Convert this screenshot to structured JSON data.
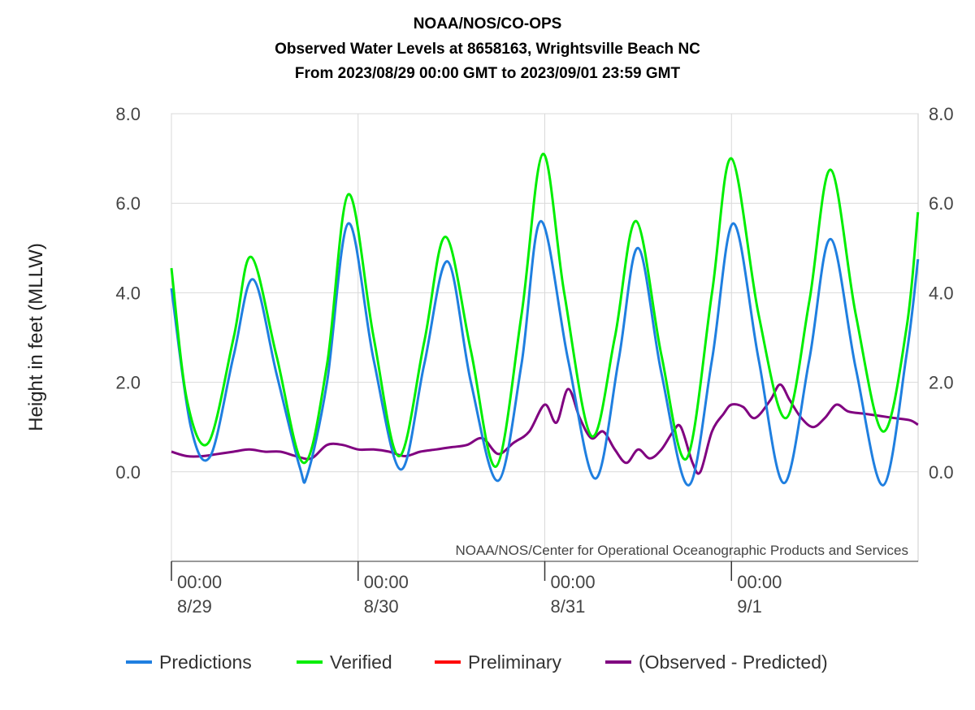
{
  "chart_data": {
    "type": "line",
    "title_lines": [
      "NOAA/NOS/CO-OPS",
      "Observed Water Levels at 8658163, Wrightsville Beach NC",
      "From 2023/08/29 00:00 GMT to 2023/09/01 23:59 GMT"
    ],
    "ylabel": "Height in feet (MLLW)",
    "ylim": [
      -2.0,
      8.0
    ],
    "y_ticks": [
      "8.0",
      "6.0",
      "4.0",
      "2.0",
      "0.0"
    ],
    "xlim": [
      "2023-08-29 00:00",
      "2023-09-01 23:59"
    ],
    "x_ticks": [
      {
        "time": "00:00",
        "date": "8/29"
      },
      {
        "time": "00:00",
        "date": "8/30"
      },
      {
        "time": "00:00",
        "date": "8/31"
      },
      {
        "time": "00:00",
        "date": "9/1"
      }
    ],
    "credit": "NOAA/NOS/Center for Operational Oceanographic Products and Services",
    "grid": true,
    "legend_position": "bottom",
    "series": [
      {
        "name": "Predictions",
        "color": "#1f7fe0",
        "points": [
          [
            "2023-08-29 00:00",
            4.1
          ],
          [
            "2023-08-29 02:30",
            1.0
          ],
          [
            "2023-08-29 05:00",
            0.35
          ],
          [
            "2023-08-29 08:00",
            2.6
          ],
          [
            "2023-08-29 10:30",
            4.3
          ],
          [
            "2023-08-29 13:30",
            2.2
          ],
          [
            "2023-08-29 16:30",
            0.1
          ],
          [
            "2023-08-29 17:30",
            -0.05
          ],
          [
            "2023-08-29 20:00",
            2.0
          ],
          [
            "2023-08-29 22:45",
            5.55
          ],
          [
            "2023-08-30 02:00",
            2.5
          ],
          [
            "2023-08-30 05:30",
            0.05
          ],
          [
            "2023-08-30 08:30",
            2.4
          ],
          [
            "2023-08-30 11:30",
            4.7
          ],
          [
            "2023-08-30 14:30",
            2.0
          ],
          [
            "2023-08-30 18:00",
            -0.2
          ],
          [
            "2023-08-30 21:00",
            2.4
          ],
          [
            "2023-08-30 23:30",
            5.6
          ],
          [
            "2023-08-31 03:00",
            2.5
          ],
          [
            "2023-08-31 06:30",
            -0.15
          ],
          [
            "2023-08-31 09:30",
            2.5
          ],
          [
            "2023-08-31 12:00",
            5.0
          ],
          [
            "2023-08-31 15:00",
            2.2
          ],
          [
            "2023-08-31 18:30",
            -0.3
          ],
          [
            "2023-08-31 21:30",
            2.5
          ],
          [
            "2023-09-01 00:15",
            5.55
          ],
          [
            "2023-09-01 03:30",
            2.5
          ],
          [
            "2023-09-01 06:45",
            -0.25
          ],
          [
            "2023-09-01 10:00",
            2.5
          ],
          [
            "2023-09-01 12:45",
            5.2
          ],
          [
            "2023-09-01 16:00",
            2.3
          ],
          [
            "2023-09-01 19:30",
            -0.3
          ],
          [
            "2023-09-01 22:30",
            2.6
          ],
          [
            "2023-09-01 23:59",
            4.75
          ]
        ]
      },
      {
        "name": "Verified",
        "color": "#00ee00",
        "points": [
          [
            "2023-08-29 00:00",
            4.55
          ],
          [
            "2023-08-29 02:00",
            1.6
          ],
          [
            "2023-08-29 04:45",
            0.65
          ],
          [
            "2023-08-29 08:00",
            3.0
          ],
          [
            "2023-08-29 10:15",
            4.8
          ],
          [
            "2023-08-29 13:30",
            2.6
          ],
          [
            "2023-08-29 17:00",
            0.2
          ],
          [
            "2023-08-29 20:00",
            2.4
          ],
          [
            "2023-08-29 22:45",
            6.2
          ],
          [
            "2023-08-30 02:00",
            3.0
          ],
          [
            "2023-08-30 05:15",
            0.35
          ],
          [
            "2023-08-30 08:30",
            2.9
          ],
          [
            "2023-08-30 11:15",
            5.25
          ],
          [
            "2023-08-30 14:30",
            2.7
          ],
          [
            "2023-08-30 17:45",
            0.12
          ],
          [
            "2023-08-30 21:00",
            3.5
          ],
          [
            "2023-08-30 23:45",
            7.1
          ],
          [
            "2023-08-31 02:30",
            4.0
          ],
          [
            "2023-08-31 06:00",
            0.8
          ],
          [
            "2023-08-31 09:00",
            3.0
          ],
          [
            "2023-08-31 11:45",
            5.6
          ],
          [
            "2023-08-31 15:00",
            2.6
          ],
          [
            "2023-08-31 18:15",
            0.3
          ],
          [
            "2023-08-31 21:30",
            4.0
          ],
          [
            "2023-09-01 00:00",
            7.0
          ],
          [
            "2023-09-01 03:30",
            3.5
          ],
          [
            "2023-09-01 07:00",
            1.2
          ],
          [
            "2023-09-01 10:00",
            3.8
          ],
          [
            "2023-09-01 12:45",
            6.75
          ],
          [
            "2023-09-01 16:00",
            3.5
          ],
          [
            "2023-09-01 19:30",
            0.9
          ],
          [
            "2023-09-01 22:30",
            3.2
          ],
          [
            "2023-09-01 23:59",
            5.8
          ]
        ]
      },
      {
        "name": "Preliminary",
        "color": "#ff0000",
        "points": []
      },
      {
        "name": "(Observed - Predicted)",
        "color": "#800080",
        "points": [
          [
            "2023-08-29 00:00",
            0.45
          ],
          [
            "2023-08-29 02:00",
            0.35
          ],
          [
            "2023-08-29 04:00",
            0.35
          ],
          [
            "2023-08-29 06:00",
            0.4
          ],
          [
            "2023-08-29 08:00",
            0.45
          ],
          [
            "2023-08-29 10:00",
            0.5
          ],
          [
            "2023-08-29 12:00",
            0.45
          ],
          [
            "2023-08-29 14:00",
            0.45
          ],
          [
            "2023-08-29 16:00",
            0.35
          ],
          [
            "2023-08-29 18:00",
            0.3
          ],
          [
            "2023-08-29 20:00",
            0.6
          ],
          [
            "2023-08-29 22:00",
            0.6
          ],
          [
            "2023-08-30 00:00",
            0.5
          ],
          [
            "2023-08-30 02:00",
            0.5
          ],
          [
            "2023-08-30 04:00",
            0.45
          ],
          [
            "2023-08-30 06:00",
            0.35
          ],
          [
            "2023-08-30 08:00",
            0.45
          ],
          [
            "2023-08-30 10:00",
            0.5
          ],
          [
            "2023-08-30 12:00",
            0.55
          ],
          [
            "2023-08-30 14:00",
            0.6
          ],
          [
            "2023-08-30 16:00",
            0.75
          ],
          [
            "2023-08-30 18:00",
            0.4
          ],
          [
            "2023-08-30 20:00",
            0.65
          ],
          [
            "2023-08-30 22:00",
            0.9
          ],
          [
            "2023-08-31 00:00",
            1.5
          ],
          [
            "2023-08-31 01:30",
            1.1
          ],
          [
            "2023-08-31 03:00",
            1.85
          ],
          [
            "2023-08-31 04:30",
            1.2
          ],
          [
            "2023-08-31 06:00",
            0.75
          ],
          [
            "2023-08-31 07:30",
            0.9
          ],
          [
            "2023-08-31 09:00",
            0.5
          ],
          [
            "2023-08-31 10:30",
            0.2
          ],
          [
            "2023-08-31 12:00",
            0.5
          ],
          [
            "2023-08-31 13:30",
            0.3
          ],
          [
            "2023-08-31 15:00",
            0.5
          ],
          [
            "2023-08-31 16:30",
            0.9
          ],
          [
            "2023-08-31 17:30",
            1.0
          ],
          [
            "2023-08-31 19:00",
            0.2
          ],
          [
            "2023-08-31 20:00",
            0.0
          ],
          [
            "2023-08-31 21:30",
            0.9
          ],
          [
            "2023-08-31 23:00",
            1.3
          ],
          [
            "2023-09-01 00:00",
            1.5
          ],
          [
            "2023-09-01 01:30",
            1.45
          ],
          [
            "2023-09-01 03:00",
            1.2
          ],
          [
            "2023-09-01 05:00",
            1.6
          ],
          [
            "2023-09-01 06:15",
            1.95
          ],
          [
            "2023-09-01 07:30",
            1.6
          ],
          [
            "2023-09-01 09:00",
            1.2
          ],
          [
            "2023-09-01 10:30",
            1.0
          ],
          [
            "2023-09-01 12:00",
            1.2
          ],
          [
            "2023-09-01 13:30",
            1.5
          ],
          [
            "2023-09-01 15:00",
            1.35
          ],
          [
            "2023-09-01 17:00",
            1.3
          ],
          [
            "2023-09-01 19:00",
            1.25
          ],
          [
            "2023-09-01 21:00",
            1.2
          ],
          [
            "2023-09-01 23:00",
            1.15
          ],
          [
            "2023-09-01 23:59",
            1.05
          ]
        ]
      }
    ]
  }
}
